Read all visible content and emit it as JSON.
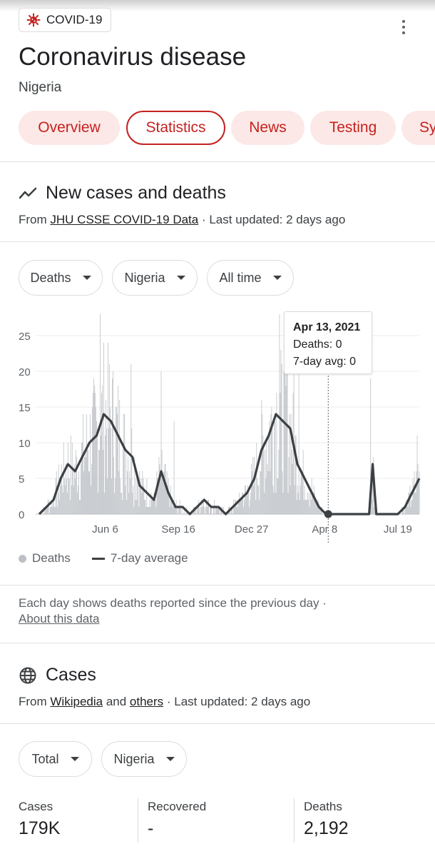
{
  "topic_chip": {
    "label": "COVID-19",
    "icon": "virus-icon"
  },
  "header": {
    "title": "Coronavirus disease",
    "location": "Nigeria"
  },
  "tabs": [
    {
      "label": "Overview",
      "active": false
    },
    {
      "label": "Statistics",
      "active": true
    },
    {
      "label": "News",
      "active": false
    },
    {
      "label": "Testing",
      "active": false
    },
    {
      "label": "Sy",
      "active": false
    }
  ],
  "new_cases": {
    "title": "New cases and deaths",
    "icon": "trend-line-icon",
    "source_prefix": "From ",
    "source_link": "JHU CSSE COVID-19 Data",
    "updated": " · Last updated: 2 days ago",
    "filters": {
      "metric": "Deaths",
      "region": "Nigeria",
      "range": "All time"
    }
  },
  "tooltip": {
    "date": "Apr 13, 2021",
    "deaths": "Deaths: 0",
    "avg": "7-day avg: 0"
  },
  "legend": {
    "bars": "Deaths",
    "line": "7-day average"
  },
  "note": {
    "text": "Each day shows deaths reported since the previous day  ·",
    "link": "About this data"
  },
  "cases": {
    "title": "Cases",
    "icon": "globe-icon",
    "source_prefix": "From ",
    "link1": "Wikipedia",
    "and": " and ",
    "link2": "others",
    "updated": " · Last updated: 2 days ago",
    "filters": {
      "type": "Total",
      "region": "Nigeria"
    }
  },
  "stats": [
    {
      "label": "Cases",
      "value": "179K"
    },
    {
      "label": "Recovered",
      "value": "-"
    },
    {
      "label": "Deaths",
      "value": "2,192"
    }
  ],
  "colors": {
    "accent": "#c5221f",
    "tab_bg": "#fce8e6",
    "bar": "#bdc1c6",
    "avg_line": "#3c4043"
  },
  "chart_data": {
    "type": "bar",
    "title": "New cases and deaths",
    "series": [
      {
        "name": "Deaths",
        "kind": "bar",
        "x": [],
        "values": []
      },
      {
        "name": "7-day average",
        "kind": "line",
        "x": [],
        "values": []
      }
    ],
    "x_ticks": [
      {
        "day": 92,
        "label": "Jun 6"
      },
      {
        "day": 194,
        "label": "Sep 16"
      },
      {
        "day": 296,
        "label": "Dec 27"
      },
      {
        "day": 398,
        "label": "Apr 8"
      },
      {
        "day": 500,
        "label": "Jul 19"
      }
    ],
    "xlim": [
      0,
      530
    ],
    "y_ticks": [
      0,
      5,
      10,
      15,
      20,
      25
    ],
    "ylim": [
      0,
      28
    ],
    "avg_knots": [
      [
        0,
        0
      ],
      [
        10,
        1
      ],
      [
        20,
        2
      ],
      [
        30,
        5
      ],
      [
        40,
        7
      ],
      [
        50,
        6
      ],
      [
        60,
        8
      ],
      [
        70,
        10
      ],
      [
        80,
        11
      ],
      [
        90,
        14
      ],
      [
        100,
        13
      ],
      [
        110,
        11
      ],
      [
        120,
        9
      ],
      [
        130,
        8
      ],
      [
        140,
        4
      ],
      [
        150,
        3
      ],
      [
        160,
        2
      ],
      [
        170,
        6
      ],
      [
        180,
        3
      ],
      [
        190,
        1
      ],
      [
        200,
        1
      ],
      [
        210,
        0
      ],
      [
        220,
        1
      ],
      [
        230,
        2
      ],
      [
        240,
        1
      ],
      [
        250,
        1
      ],
      [
        260,
        0
      ],
      [
        270,
        1
      ],
      [
        280,
        2
      ],
      [
        290,
        3
      ],
      [
        300,
        5
      ],
      [
        310,
        9
      ],
      [
        320,
        11
      ],
      [
        330,
        14
      ],
      [
        340,
        13
      ],
      [
        350,
        12
      ],
      [
        360,
        7
      ],
      [
        370,
        5
      ],
      [
        380,
        3
      ],
      [
        390,
        1
      ],
      [
        400,
        0
      ],
      [
        410,
        0
      ],
      [
        420,
        0
      ],
      [
        430,
        0
      ],
      [
        440,
        0
      ],
      [
        450,
        0
      ],
      [
        460,
        0
      ],
      [
        465,
        7
      ],
      [
        470,
        0
      ],
      [
        480,
        0
      ],
      [
        490,
        0
      ],
      [
        500,
        0
      ],
      [
        510,
        1
      ],
      [
        520,
        3
      ],
      [
        530,
        5
      ]
    ],
    "spike_days": [
      [
        85,
        28
      ],
      [
        128,
        21
      ],
      [
        170,
        20
      ],
      [
        188,
        13
      ],
      [
        335,
        28
      ],
      [
        345,
        26
      ],
      [
        355,
        24
      ],
      [
        362,
        22
      ],
      [
        462,
        19
      ],
      [
        527,
        11
      ]
    ],
    "highlight": {
      "day": 403,
      "value": 0
    }
  }
}
